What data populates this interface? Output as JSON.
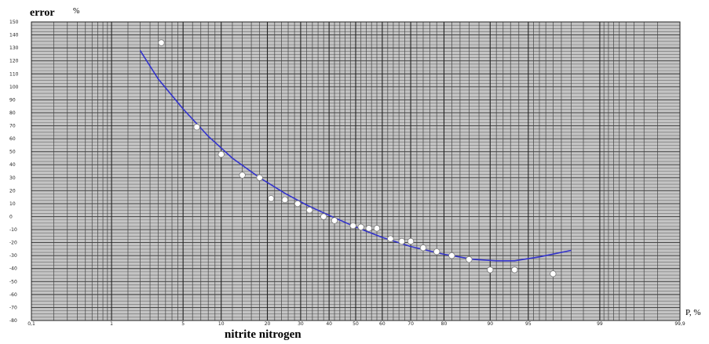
{
  "chart_data": {
    "type": "scatter",
    "title": "nitrite nitrogen",
    "ylabel": "error",
    "yunit": "%",
    "xlabel": "P, %",
    "xscale": "probability",
    "ylim": [
      -80,
      150
    ],
    "yticks": [
      150,
      140,
      130,
      120,
      110,
      100,
      90,
      80,
      70,
      60,
      50,
      40,
      30,
      20,
      10,
      0,
      -10,
      -20,
      -30,
      -40,
      -50,
      -60,
      -70,
      -80
    ],
    "xtick_labels": [
      {
        "p": 0.1,
        "label": "0,1"
      },
      {
        "p": 1,
        "label": "1"
      },
      {
        "p": 5,
        "label": "5"
      },
      {
        "p": 10,
        "label": "10"
      },
      {
        "p": 20,
        "label": "20"
      },
      {
        "p": 30,
        "label": "30"
      },
      {
        "p": 40,
        "label": "40"
      },
      {
        "p": 50,
        "label": "50"
      },
      {
        "p": 60,
        "label": "60"
      },
      {
        "p": 70,
        "label": "70"
      },
      {
        "p": 80,
        "label": "80"
      },
      {
        "p": 90,
        "label": "90"
      },
      {
        "p": 95,
        "label": "95"
      },
      {
        "p": 99,
        "label": "99"
      },
      {
        "p": 99.9,
        "label": "99,9"
      }
    ],
    "grid": true,
    "series": [
      {
        "kind": "points",
        "color": "#ffffff",
        "points": [
          [
            3.2,
            134
          ],
          [
            6.5,
            69
          ],
          [
            10,
            48
          ],
          [
            14,
            32
          ],
          [
            18,
            30
          ],
          [
            21,
            14
          ],
          [
            25,
            13
          ],
          [
            29,
            10
          ],
          [
            33,
            5
          ],
          [
            38,
            0
          ],
          [
            42,
            -3
          ],
          [
            49,
            -7
          ],
          [
            52,
            -8
          ],
          [
            55,
            -9
          ],
          [
            58,
            -9
          ],
          [
            63,
            -17
          ],
          [
            67,
            -19
          ],
          [
            70,
            -19
          ],
          [
            74,
            -24
          ],
          [
            78,
            -27
          ],
          [
            82,
            -30
          ],
          [
            86,
            -33
          ],
          [
            90,
            -41
          ],
          [
            93.5,
            -41
          ],
          [
            97,
            -44
          ]
        ]
      },
      {
        "kind": "fit",
        "color": "#3333cc",
        "points": [
          [
            2,
            128
          ],
          [
            3,
            106
          ],
          [
            5,
            83
          ],
          [
            8,
            62
          ],
          [
            12,
            45
          ],
          [
            18,
            30
          ],
          [
            25,
            18
          ],
          [
            32,
            9
          ],
          [
            40,
            1
          ],
          [
            50,
            -8
          ],
          [
            60,
            -16
          ],
          [
            70,
            -23
          ],
          [
            80,
            -29
          ],
          [
            87,
            -33
          ],
          [
            91,
            -34
          ],
          [
            93.5,
            -34
          ],
          [
            96,
            -31
          ],
          [
            98,
            -26
          ]
        ]
      }
    ]
  }
}
